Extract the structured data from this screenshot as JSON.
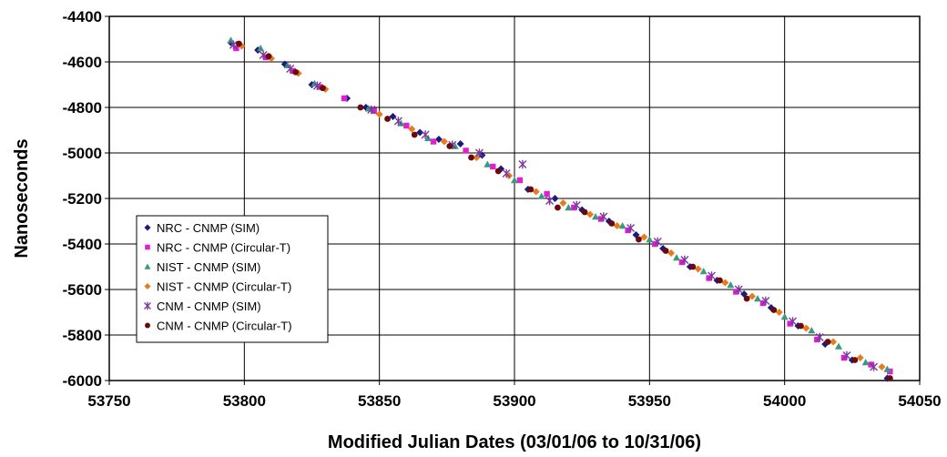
{
  "chart_data": {
    "type": "scatter",
    "title": "",
    "xlabel": "Modified Julian Dates (03/01/06 to 10/31/06)",
    "ylabel": "Nanoseconds",
    "xlim": [
      53750,
      54050
    ],
    "ylim": [
      -6000,
      -4400
    ],
    "xticks": [
      53750,
      53800,
      53850,
      53900,
      53950,
      54000,
      54050
    ],
    "yticks": [
      -4400,
      -4600,
      -4800,
      -5000,
      -5200,
      -5400,
      -5600,
      -5800,
      -6000
    ],
    "grid": true,
    "legend_position": "lower-left",
    "series": [
      {
        "name": "NRC - CNMP (SIM)",
        "marker": "diamond",
        "color": "#1a1a80",
        "points": [
          [
            53795,
            -4515
          ],
          [
            53805,
            -4548
          ],
          [
            53815,
            -4610
          ],
          [
            53825,
            -4700
          ],
          [
            53838,
            -4760
          ],
          [
            53845,
            -4800
          ],
          [
            53855,
            -4840
          ],
          [
            53865,
            -4910
          ],
          [
            53872,
            -4940
          ],
          [
            53880,
            -4960
          ],
          [
            53888,
            -5010
          ],
          [
            53895,
            -5070
          ],
          [
            53905,
            -5160
          ],
          [
            53915,
            -5200
          ],
          [
            53925,
            -5250
          ],
          [
            53935,
            -5300
          ],
          [
            53945,
            -5360
          ],
          [
            53955,
            -5420
          ],
          [
            53965,
            -5500
          ],
          [
            53975,
            -5560
          ],
          [
            53985,
            -5620
          ],
          [
            53995,
            -5680
          ],
          [
            54005,
            -5760
          ],
          [
            54015,
            -5840
          ],
          [
            54025,
            -5910
          ],
          [
            54038,
            -5990
          ]
        ]
      },
      {
        "name": "NRC - CNMP (Circular-T)",
        "marker": "square",
        "color": "#e020d0",
        "points": [
          [
            53797,
            -4540
          ],
          [
            53808,
            -4580
          ],
          [
            53818,
            -4640
          ],
          [
            53828,
            -4710
          ],
          [
            53837,
            -4760
          ],
          [
            53848,
            -4815
          ],
          [
            53860,
            -4880
          ],
          [
            53870,
            -4950
          ],
          [
            53882,
            -4990
          ],
          [
            53892,
            -5060
          ],
          [
            53902,
            -5120
          ],
          [
            53912,
            -5180
          ],
          [
            53922,
            -5240
          ],
          [
            53932,
            -5290
          ],
          [
            53942,
            -5340
          ],
          [
            53952,
            -5400
          ],
          [
            53962,
            -5480
          ],
          [
            53972,
            -5550
          ],
          [
            53982,
            -5610
          ],
          [
            53992,
            -5660
          ],
          [
            54002,
            -5750
          ],
          [
            54012,
            -5820
          ],
          [
            54022,
            -5900
          ],
          [
            54032,
            -5930
          ],
          [
            54039,
            -5960
          ]
        ]
      },
      {
        "name": "NIST - CNMP (SIM)",
        "marker": "triangle",
        "color": "#3a9a80",
        "points": [
          [
            53795,
            -4505
          ],
          [
            53806,
            -4540
          ],
          [
            53816,
            -4615
          ],
          [
            53826,
            -4695
          ],
          [
            53846,
            -4805
          ],
          [
            53858,
            -4870
          ],
          [
            53868,
            -4935
          ],
          [
            53878,
            -4970
          ],
          [
            53890,
            -5050
          ],
          [
            53900,
            -5120
          ],
          [
            53910,
            -5190
          ],
          [
            53920,
            -5240
          ],
          [
            53930,
            -5280
          ],
          [
            53940,
            -5320
          ],
          [
            53950,
            -5380
          ],
          [
            53960,
            -5460
          ],
          [
            53970,
            -5520
          ],
          [
            53980,
            -5580
          ],
          [
            53990,
            -5640
          ],
          [
            54000,
            -5720
          ],
          [
            54010,
            -5780
          ],
          [
            54020,
            -5850
          ],
          [
            54030,
            -5920
          ],
          [
            54038,
            -5950
          ]
        ]
      },
      {
        "name": "NIST - CNMP (Circular-T)",
        "marker": "diamond",
        "color": "#e87a20",
        "points": [
          [
            53799,
            -4530
          ],
          [
            53810,
            -4585
          ],
          [
            53820,
            -4650
          ],
          [
            53830,
            -4720
          ],
          [
            53850,
            -4830
          ],
          [
            53862,
            -4895
          ],
          [
            53874,
            -4950
          ],
          [
            53886,
            -5020
          ],
          [
            53898,
            -5100
          ],
          [
            53908,
            -5170
          ],
          [
            53918,
            -5220
          ],
          [
            53928,
            -5270
          ],
          [
            53938,
            -5320
          ],
          [
            53948,
            -5370
          ],
          [
            53958,
            -5440
          ],
          [
            53968,
            -5510
          ],
          [
            53978,
            -5570
          ],
          [
            53988,
            -5630
          ],
          [
            53998,
            -5700
          ],
          [
            54008,
            -5770
          ],
          [
            54018,
            -5830
          ],
          [
            54028,
            -5900
          ],
          [
            54036,
            -5940
          ]
        ]
      },
      {
        "name": "CNM - CNMP (SIM)",
        "marker": "star",
        "color": "#7a3aa0",
        "points": [
          [
            53796,
            -4525
          ],
          [
            53807,
            -4570
          ],
          [
            53817,
            -4630
          ],
          [
            53827,
            -4705
          ],
          [
            53847,
            -4810
          ],
          [
            53857,
            -4860
          ],
          [
            53867,
            -4920
          ],
          [
            53877,
            -4965
          ],
          [
            53887,
            -5000
          ],
          [
            53897,
            -5090
          ],
          [
            53903,
            -5050
          ],
          [
            53913,
            -5210
          ],
          [
            53923,
            -5230
          ],
          [
            53933,
            -5280
          ],
          [
            53943,
            -5330
          ],
          [
            53953,
            -5390
          ],
          [
            53963,
            -5470
          ],
          [
            53973,
            -5540
          ],
          [
            53983,
            -5600
          ],
          [
            53993,
            -5650
          ],
          [
            54003,
            -5740
          ],
          [
            54013,
            -5810
          ],
          [
            54023,
            -5890
          ],
          [
            54033,
            -5940
          ]
        ]
      },
      {
        "name": "CNM - CNMP (Circular-T)",
        "marker": "circle",
        "color": "#6a0a0a",
        "points": [
          [
            53798,
            -4520
          ],
          [
            53809,
            -4575
          ],
          [
            53819,
            -4645
          ],
          [
            53829,
            -4715
          ],
          [
            53843,
            -4800
          ],
          [
            53853,
            -4850
          ],
          [
            53863,
            -4920
          ],
          [
            53876,
            -4970
          ],
          [
            53884,
            -5020
          ],
          [
            53894,
            -5080
          ],
          [
            53906,
            -5160
          ],
          [
            53916,
            -5240
          ],
          [
            53926,
            -5260
          ],
          [
            53936,
            -5310
          ],
          [
            53946,
            -5380
          ],
          [
            53956,
            -5430
          ],
          [
            53966,
            -5500
          ],
          [
            53976,
            -5560
          ],
          [
            53986,
            -5640
          ],
          [
            53996,
            -5690
          ],
          [
            54006,
            -5760
          ],
          [
            54016,
            -5830
          ],
          [
            54026,
            -5910
          ],
          [
            54039,
            -5990
          ]
        ]
      }
    ]
  }
}
